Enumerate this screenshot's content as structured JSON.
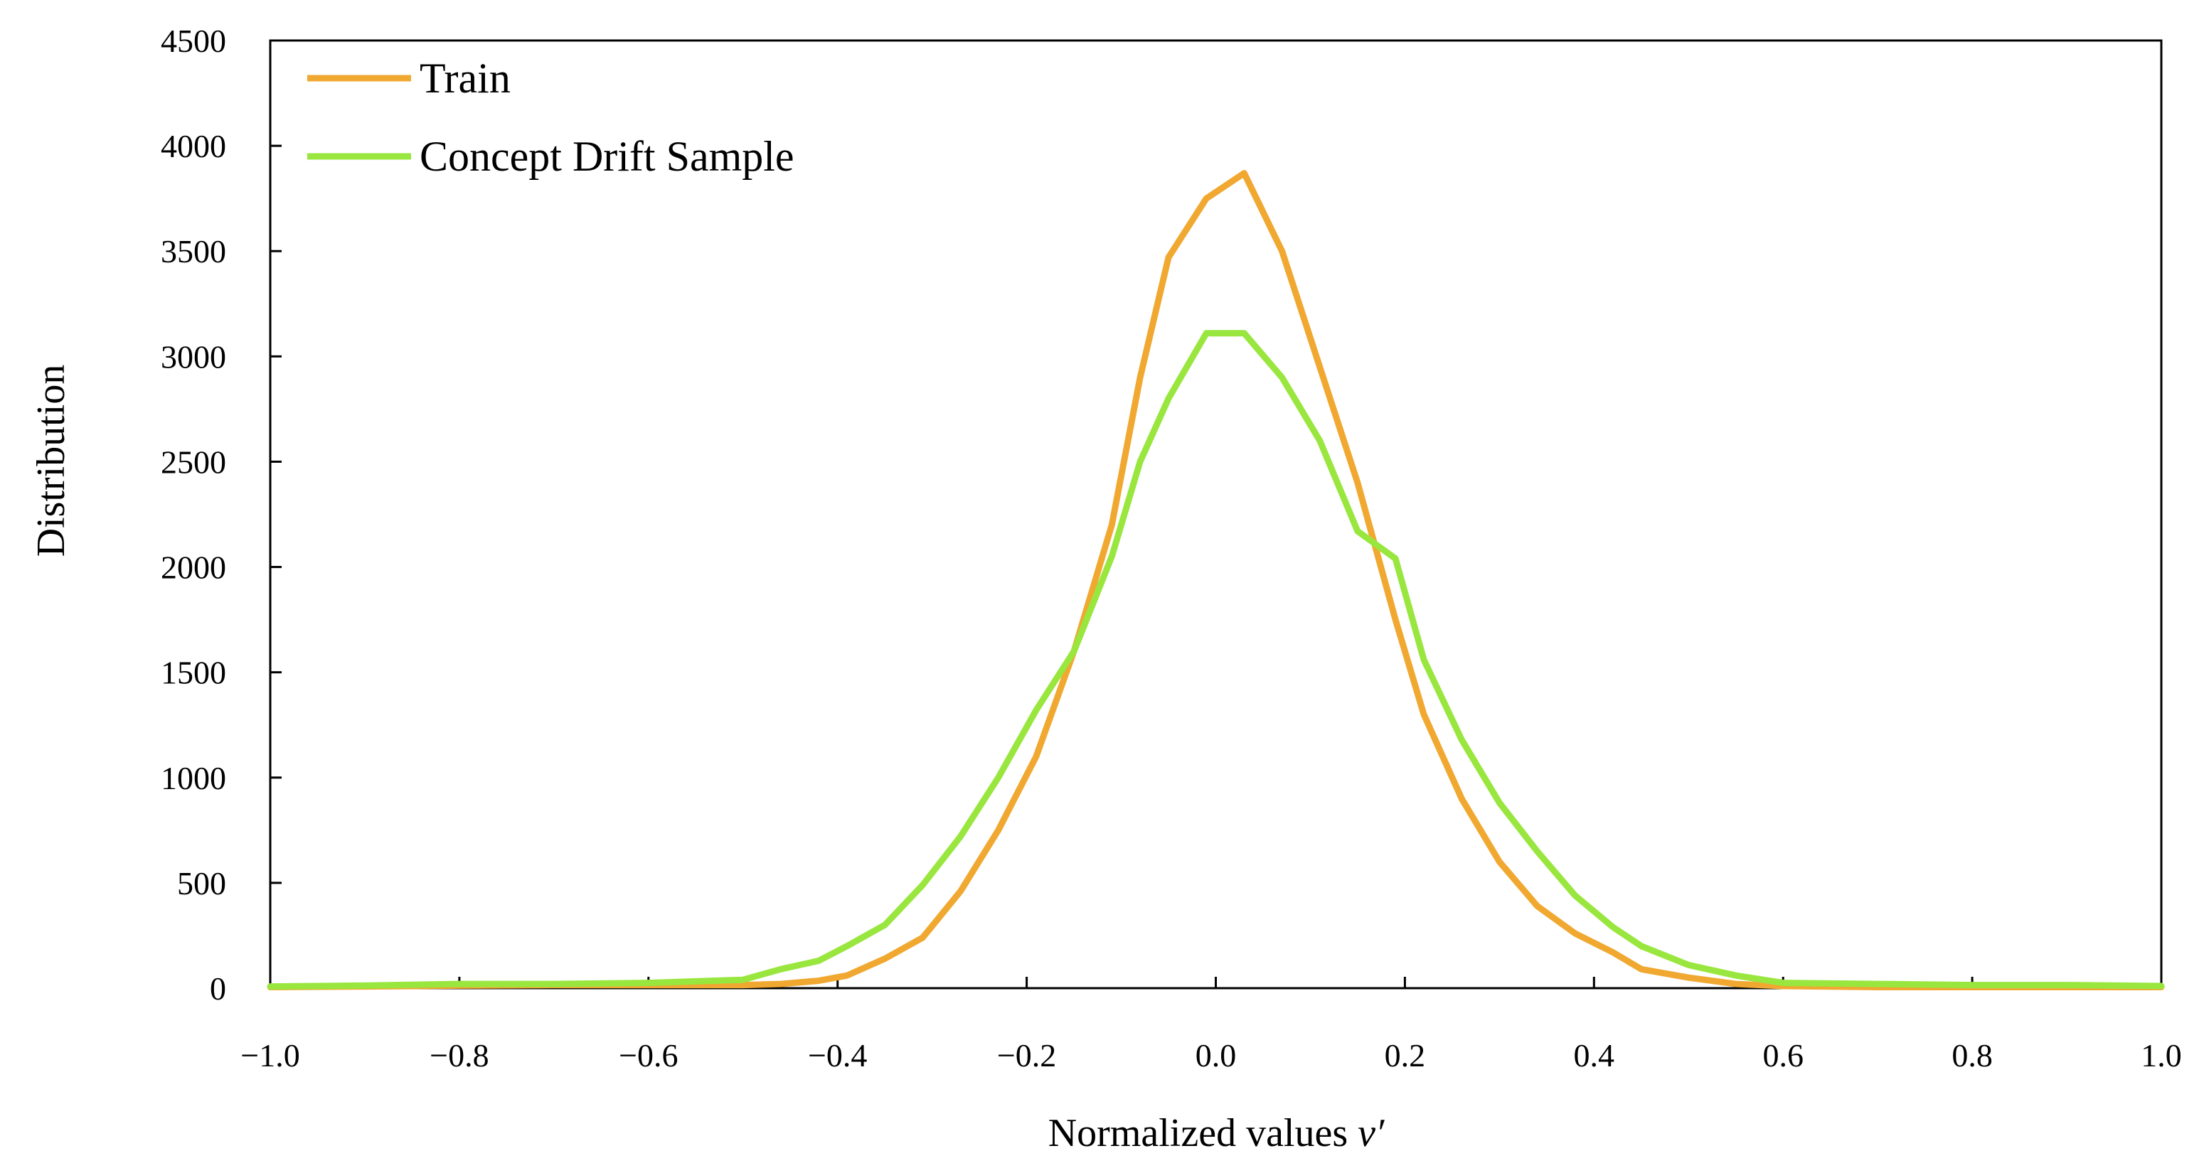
{
  "chart_data": {
    "type": "line",
    "title": "",
    "xlabel": "Normalized values ",
    "xlabel_var": "v′",
    "ylabel": "Distribution",
    "xlim": [
      -1.0,
      1.0
    ],
    "ylim": [
      0,
      4500
    ],
    "x_ticks": [
      -1.0,
      -0.8,
      -0.6,
      -0.4,
      -0.2,
      0.0,
      0.2,
      0.4,
      0.6,
      0.8,
      1.0
    ],
    "x_tick_labels": [
      "−1.0",
      "−0.8",
      "−0.6",
      "−0.4",
      "−0.2",
      "0.0",
      "0.2",
      "0.4",
      "0.6",
      "0.8",
      "1.0"
    ],
    "y_ticks": [
      0,
      500,
      1000,
      1500,
      2000,
      2500,
      3000,
      3500,
      4000,
      4500
    ],
    "y_tick_labels": [
      "0",
      "500",
      "1000",
      "1500",
      "2000",
      "2500",
      "3000",
      "3500",
      "4000",
      "4500"
    ],
    "grid": false,
    "legend_position": "top-left",
    "series": [
      {
        "name": "Train",
        "color": "#f0a830",
        "x": [
          -1.0,
          -0.9,
          -0.8,
          -0.7,
          -0.6,
          -0.5,
          -0.46,
          -0.42,
          -0.39,
          -0.35,
          -0.31,
          -0.27,
          -0.23,
          -0.19,
          -0.15,
          -0.11,
          -0.08,
          -0.05,
          -0.01,
          0.03,
          0.07,
          0.11,
          0.15,
          0.19,
          0.22,
          0.26,
          0.3,
          0.34,
          0.38,
          0.42,
          0.45,
          0.5,
          0.55,
          0.6,
          0.7,
          0.8,
          0.9,
          1.0
        ],
        "values": [
          5,
          8,
          12,
          15,
          15,
          15,
          20,
          35,
          60,
          140,
          240,
          460,
          750,
          1100,
          1600,
          2200,
          2900,
          3470,
          3750,
          3870,
          3500,
          2950,
          2400,
          1750,
          1300,
          900,
          600,
          390,
          260,
          170,
          90,
          50,
          20,
          10,
          5,
          5,
          5,
          5
        ]
      },
      {
        "name": "Concept Drift Sample",
        "color": "#99e63e",
        "x": [
          -1.0,
          -0.9,
          -0.8,
          -0.7,
          -0.6,
          -0.5,
          -0.46,
          -0.42,
          -0.39,
          -0.35,
          -0.31,
          -0.27,
          -0.23,
          -0.19,
          -0.15,
          -0.11,
          -0.08,
          -0.05,
          -0.01,
          0.03,
          0.07,
          0.11,
          0.15,
          0.19,
          0.22,
          0.26,
          0.3,
          0.34,
          0.38,
          0.42,
          0.45,
          0.5,
          0.55,
          0.6,
          0.7,
          0.8,
          0.9,
          1.0
        ],
        "values": [
          8,
          12,
          20,
          20,
          25,
          40,
          90,
          130,
          200,
          300,
          490,
          720,
          1000,
          1320,
          1600,
          2050,
          2500,
          2800,
          3110,
          3110,
          2900,
          2600,
          2170,
          2040,
          1560,
          1180,
          880,
          650,
          440,
          290,
          200,
          110,
          60,
          25,
          20,
          15,
          15,
          10
        ]
      }
    ]
  }
}
